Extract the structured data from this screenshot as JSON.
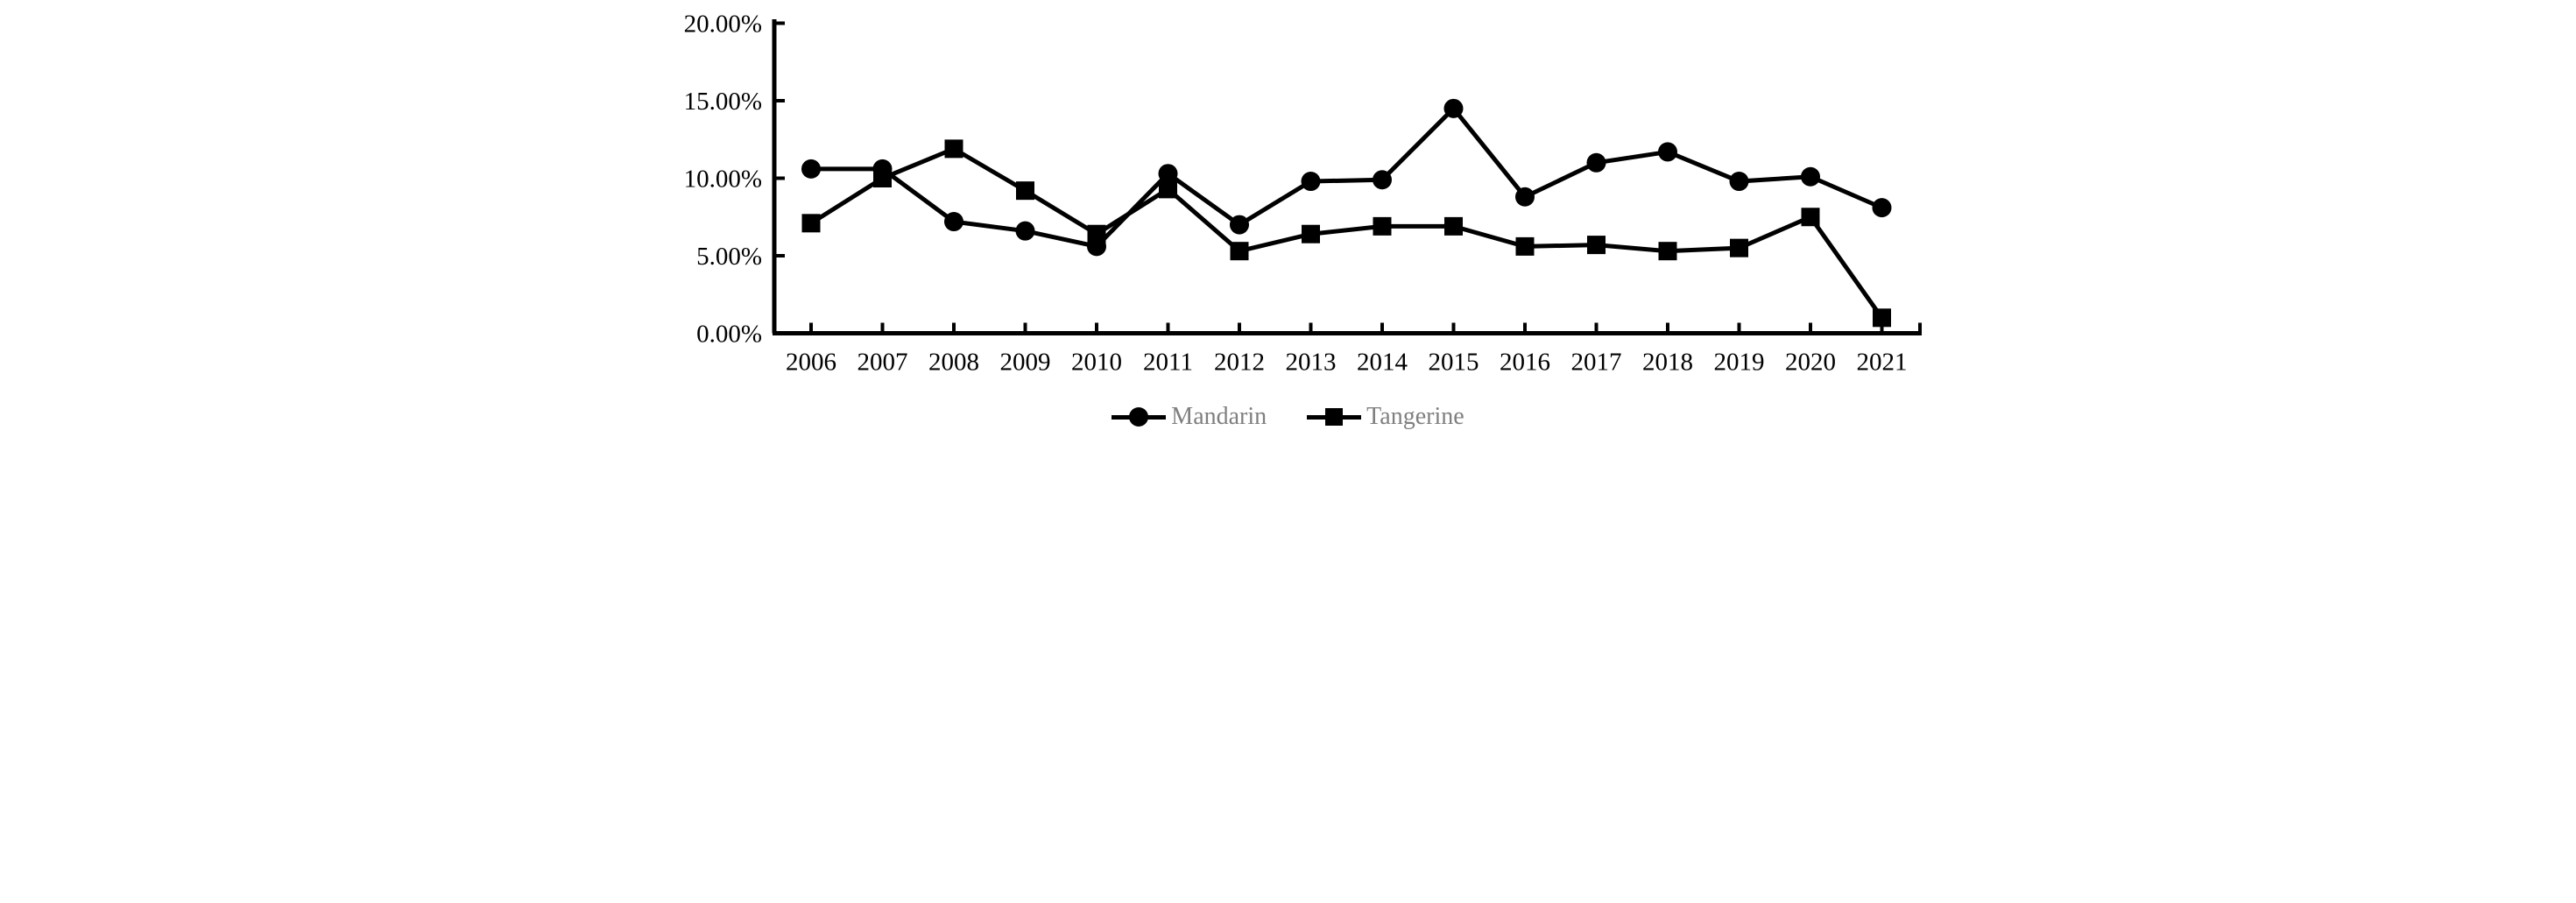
{
  "chart_data": {
    "type": "line",
    "title": "",
    "xlabel": "",
    "ylabel": "",
    "categories": [
      "2006",
      "2007",
      "2008",
      "2009",
      "2010",
      "2011",
      "2012",
      "2013",
      "2014",
      "2015",
      "2016",
      "2017",
      "2018",
      "2019",
      "2020",
      "2021"
    ],
    "series": [
      {
        "name": "Mandarin",
        "marker": "circle",
        "color": "#000000",
        "values": [
          10.6,
          10.6,
          7.2,
          6.6,
          5.6,
          10.3,
          7.0,
          9.8,
          9.9,
          14.5,
          8.8,
          11.0,
          11.7,
          9.8,
          10.1,
          8.1
        ]
      },
      {
        "name": "Tangerine",
        "marker": "square",
        "color": "#000000",
        "values": [
          7.1,
          10.0,
          11.9,
          9.2,
          6.4,
          9.3,
          5.3,
          6.4,
          6.9,
          6.9,
          5.6,
          5.7,
          5.3,
          5.5,
          7.5,
          1.0
        ]
      }
    ],
    "ylim": [
      0,
      20
    ],
    "ytick_step": 5,
    "ytick_labels": [
      "0.00%",
      "5.00%",
      "10.00%",
      "15.00%",
      "20.00%"
    ],
    "grid": false,
    "legend_position": "bottom",
    "axis_color": "#000000",
    "legend_text_color": "#7f7f7f"
  }
}
